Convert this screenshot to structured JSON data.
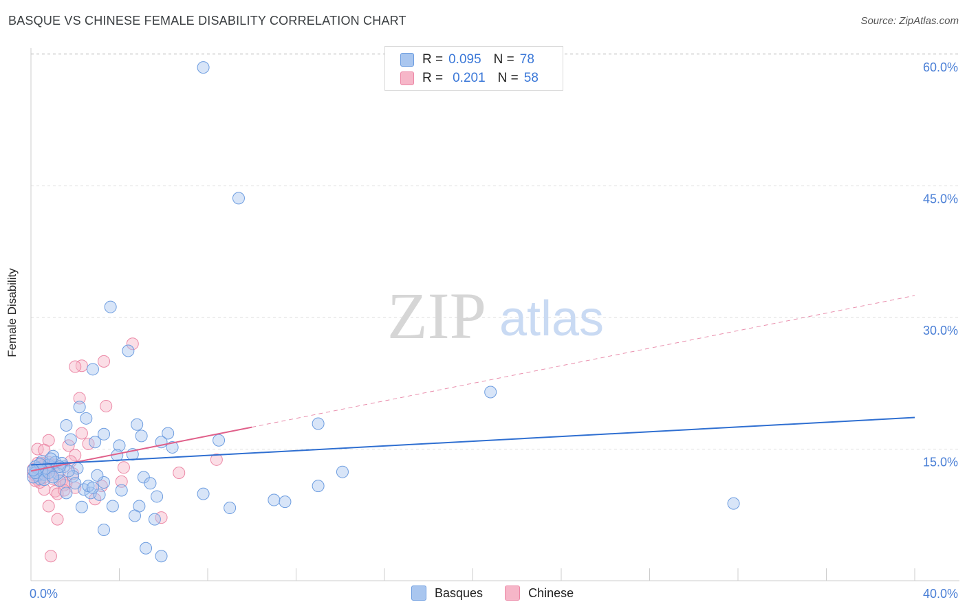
{
  "header": {
    "title": "BASQUE VS CHINESE FEMALE DISABILITY CORRELATION CHART",
    "source": "Source: ZipAtlas.com"
  },
  "watermark": {
    "zip": "ZIP",
    "atlas": "atlas"
  },
  "legend": {
    "rows": [
      {
        "r_label": "R =",
        "r_value": "0.095",
        "n_label": "N =",
        "n_value": "78"
      },
      {
        "r_label": "R =",
        "r_value": "0.201",
        "n_label": "N =",
        "n_value": "58"
      }
    ]
  },
  "colors": {
    "basques_fill": "#a9c6ef",
    "basques_stroke": "#6d9de0",
    "basques_line": "#2f6fd1",
    "chinese_fill": "#f6b6c8",
    "chinese_stroke": "#ec88a6",
    "chinese_line": "#e0608a",
    "grid": "#dddddd",
    "tick_text": "#4a7fd6"
  },
  "chart_data": {
    "type": "scatter",
    "title": "BASQUE VS CHINESE FEMALE DISABILITY CORRELATION CHART",
    "xlabel": "",
    "ylabel": "Female Disability",
    "xlim": [
      0,
      40
    ],
    "ylim": [
      0,
      60
    ],
    "x_tick_labels": [
      "0.0%",
      "40.0%"
    ],
    "y_ticks": [
      15,
      30,
      45,
      60
    ],
    "y_tick_labels": [
      "15.0%",
      "30.0%",
      "45.0%",
      "60.0%"
    ],
    "grid": true,
    "legend": [
      "Basques",
      "Chinese"
    ],
    "series": [
      {
        "name": "Basques",
        "trend": {
          "x": [
            0,
            40
          ],
          "y": [
            13.2,
            18.6
          ]
        },
        "points": [
          [
            7.8,
            58.5
          ],
          [
            9.4,
            43.6
          ],
          [
            3.6,
            31.2
          ],
          [
            4.4,
            26.2
          ],
          [
            2.8,
            24.1
          ],
          [
            20.8,
            21.5
          ],
          [
            2.2,
            19.8
          ],
          [
            4.8,
            17.8
          ],
          [
            13.0,
            17.9
          ],
          [
            1.6,
            17.7
          ],
          [
            2.5,
            18.5
          ],
          [
            3.3,
            16.7
          ],
          [
            5.0,
            16.5
          ],
          [
            6.2,
            16.8
          ],
          [
            8.5,
            16.0
          ],
          [
            1.8,
            16.1
          ],
          [
            2.9,
            15.8
          ],
          [
            4.0,
            15.4
          ],
          [
            5.9,
            15.8
          ],
          [
            6.4,
            15.2
          ],
          [
            4.6,
            14.4
          ],
          [
            3.9,
            14.3
          ],
          [
            1.0,
            14.2
          ],
          [
            0.5,
            13.6
          ],
          [
            0.8,
            13.2
          ],
          [
            1.5,
            13.0
          ],
          [
            2.1,
            12.8
          ],
          [
            0.2,
            12.5
          ],
          [
            0.3,
            12.0
          ],
          [
            0.4,
            11.6
          ],
          [
            0.6,
            12.1
          ],
          [
            1.3,
            11.4
          ],
          [
            1.9,
            11.9
          ],
          [
            5.1,
            11.8
          ],
          [
            3.3,
            11.2
          ],
          [
            5.4,
            11.1
          ],
          [
            2.4,
            10.4
          ],
          [
            2.7,
            10.0
          ],
          [
            3.1,
            9.8
          ],
          [
            4.1,
            10.3
          ],
          [
            1.6,
            10.0
          ],
          [
            2.6,
            10.8
          ],
          [
            7.8,
            9.9
          ],
          [
            13.0,
            10.8
          ],
          [
            14.1,
            12.4
          ],
          [
            11.0,
            9.2
          ],
          [
            11.5,
            9.0
          ],
          [
            5.7,
            9.6
          ],
          [
            2.3,
            8.4
          ],
          [
            3.7,
            8.5
          ],
          [
            4.9,
            8.5
          ],
          [
            9.0,
            8.3
          ],
          [
            4.7,
            7.4
          ],
          [
            5.6,
            7.0
          ],
          [
            3.3,
            5.8
          ],
          [
            5.2,
            3.7
          ],
          [
            5.9,
            2.8
          ],
          [
            31.8,
            8.8
          ],
          [
            1.1,
            13.5
          ],
          [
            0.9,
            13.9
          ],
          [
            0.7,
            12.8
          ],
          [
            0.1,
            11.8
          ],
          [
            0.2,
            13.0
          ],
          [
            0.5,
            12.6
          ],
          [
            1.2,
            12.2
          ],
          [
            1.4,
            13.4
          ],
          [
            2.0,
            11.1
          ],
          [
            2.8,
            10.6
          ],
          [
            3.0,
            12.0
          ],
          [
            0.3,
            12.8
          ],
          [
            0.6,
            11.5
          ],
          [
            1.7,
            12.5
          ],
          [
            0.4,
            13.3
          ],
          [
            0.8,
            12.3
          ],
          [
            1.0,
            11.8
          ],
          [
            0.2,
            12.3
          ],
          [
            0.1,
            12.6
          ],
          [
            1.3,
            13.0
          ]
        ]
      },
      {
        "name": "Chinese",
        "trend": {
          "x": [
            0,
            10
          ],
          "y": [
            12.5,
            17.5
          ]
        },
        "trend_dashed": {
          "x": [
            10,
            40
          ],
          "y": [
            17.5,
            32.5
          ]
        },
        "points": [
          [
            4.6,
            27.0
          ],
          [
            3.3,
            25.0
          ],
          [
            2.3,
            24.5
          ],
          [
            2.0,
            24.4
          ],
          [
            2.2,
            20.8
          ],
          [
            3.4,
            19.9
          ],
          [
            2.3,
            16.8
          ],
          [
            0.8,
            16.0
          ],
          [
            1.7,
            15.4
          ],
          [
            0.3,
            15.0
          ],
          [
            0.6,
            14.9
          ],
          [
            2.0,
            14.3
          ],
          [
            8.4,
            13.8
          ],
          [
            1.8,
            13.6
          ],
          [
            0.5,
            13.4
          ],
          [
            1.1,
            13.2
          ],
          [
            0.4,
            12.9
          ],
          [
            0.2,
            12.6
          ],
          [
            0.7,
            12.4
          ],
          [
            0.9,
            12.1
          ],
          [
            0.1,
            12.2
          ],
          [
            0.3,
            11.9
          ],
          [
            0.6,
            11.8
          ],
          [
            1.4,
            11.4
          ],
          [
            4.1,
            11.3
          ],
          [
            1.5,
            10.9
          ],
          [
            2.0,
            10.6
          ],
          [
            6.7,
            12.3
          ],
          [
            0.6,
            10.4
          ],
          [
            1.1,
            10.2
          ],
          [
            1.2,
            9.9
          ],
          [
            2.9,
            9.3
          ],
          [
            0.8,
            8.5
          ],
          [
            5.9,
            7.2
          ],
          [
            1.2,
            7.0
          ],
          [
            0.9,
            2.8
          ],
          [
            0.3,
            11.5
          ],
          [
            0.4,
            12.8
          ],
          [
            0.2,
            12.0
          ],
          [
            0.5,
            12.3
          ],
          [
            0.7,
            12.9
          ],
          [
            0.9,
            13.1
          ],
          [
            1.3,
            12.4
          ],
          [
            1.6,
            11.1
          ],
          [
            0.3,
            13.4
          ],
          [
            0.1,
            12.7
          ],
          [
            0.4,
            11.2
          ],
          [
            0.6,
            13.2
          ],
          [
            1.0,
            11.6
          ],
          [
            0.8,
            13.5
          ],
          [
            0.2,
            11.4
          ],
          [
            1.9,
            12.2
          ],
          [
            2.6,
            15.6
          ],
          [
            3.2,
            10.8
          ],
          [
            4.2,
            12.9
          ],
          [
            1.5,
            10.3
          ],
          [
            0.5,
            12.5
          ],
          [
            0.3,
            12.1
          ]
        ]
      }
    ]
  },
  "bottom_legend": {
    "basques": "Basques",
    "chinese": "Chinese"
  }
}
